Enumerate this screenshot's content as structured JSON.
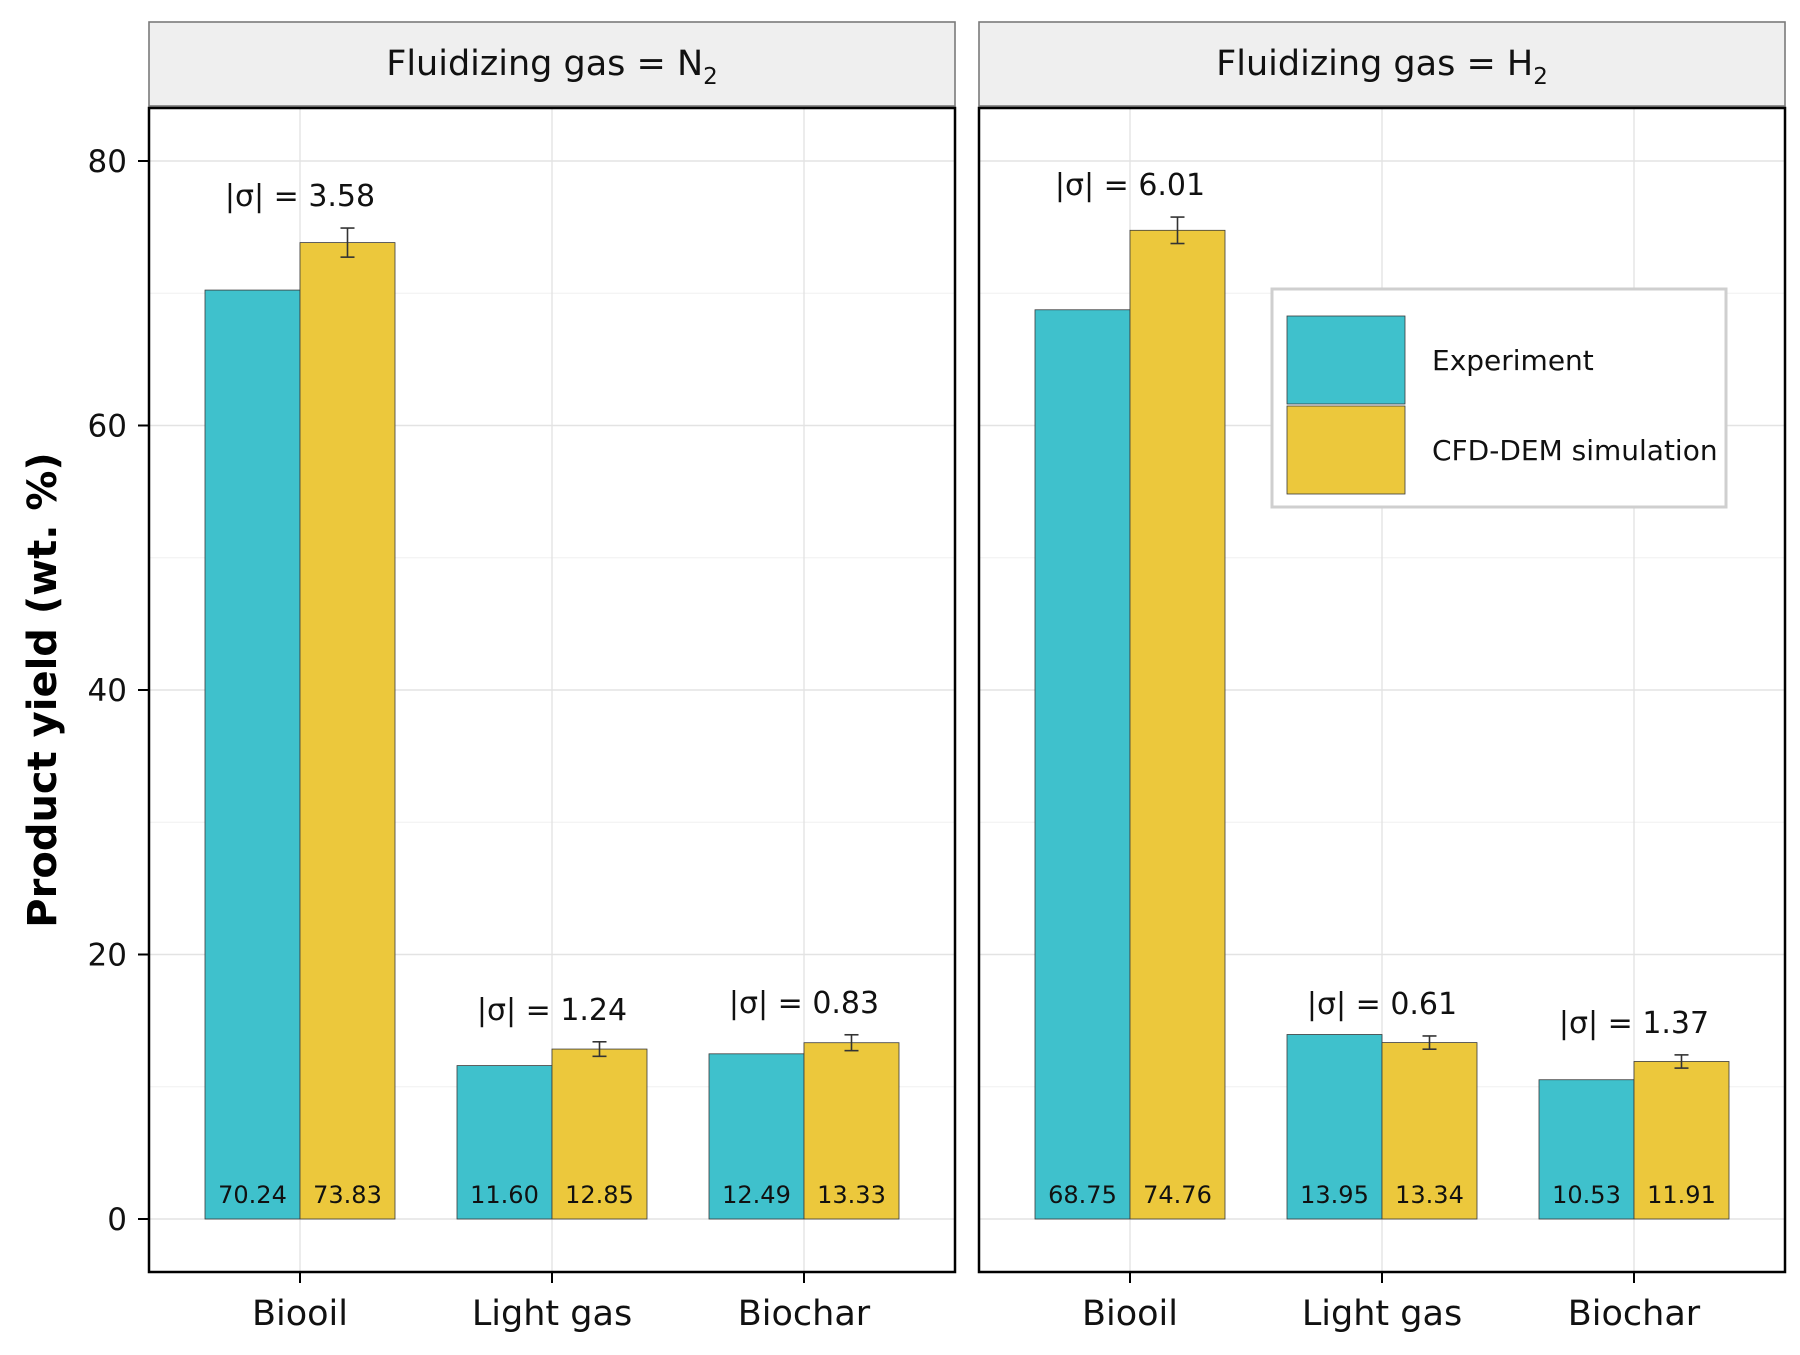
{
  "chart_data": {
    "type": "bar",
    "ylabel": "Product yield (wt. %)",
    "ylim": [
      -4,
      84
    ],
    "yticks": [
      "0",
      "20",
      "40",
      "60",
      "80"
    ],
    "categories": [
      "Biooil",
      "Light gas",
      "Biochar"
    ],
    "colors": {
      "Experiment": "#3fc1cc",
      "CFD-DEM simulation": "#ecc83c"
    },
    "legend": {
      "position": "top-right inside second panel",
      "entries": [
        "Experiment",
        "CFD-DEM simulation"
      ]
    },
    "grid": true,
    "panels": [
      {
        "strip_prefix": "Fluidizing gas = N",
        "strip_subscript": "2",
        "series": [
          {
            "name": "Experiment",
            "values": [
              70.24,
              11.6,
              12.49
            ],
            "value_labels": [
              "70.24",
              "11.60",
              "12.49"
            ]
          },
          {
            "name": "CFD-DEM simulation",
            "values": [
              73.83,
              12.85,
              13.33
            ],
            "value_labels": [
              "73.83",
              "12.85",
              "13.33"
            ],
            "error": [
              1.1,
              0.55,
              0.6
            ]
          }
        ],
        "sigma_labels": [
          "|σ| = 3.58",
          "|σ| = 1.24",
          "|σ| = 0.83"
        ]
      },
      {
        "strip_prefix": "Fluidizing gas = H",
        "strip_subscript": "2",
        "series": [
          {
            "name": "Experiment",
            "values": [
              68.75,
              13.95,
              10.53
            ],
            "value_labels": [
              "68.75",
              "13.95",
              "10.53"
            ]
          },
          {
            "name": "CFD-DEM simulation",
            "values": [
              74.76,
              13.34,
              11.91
            ],
            "value_labels": [
              "74.76",
              "13.34",
              "11.91"
            ],
            "error": [
              1.0,
              0.5,
              0.5
            ]
          }
        ],
        "sigma_labels": [
          "|σ| = 6.01",
          "|σ| = 0.61",
          "|σ| = 1.37"
        ]
      }
    ]
  }
}
